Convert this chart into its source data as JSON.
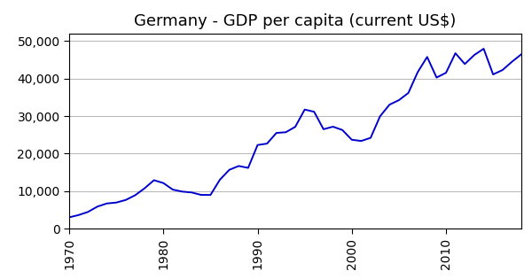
{
  "title": "Germany - GDP per capita (current US$)",
  "years": [
    1970,
    1971,
    1972,
    1973,
    1974,
    1975,
    1976,
    1977,
    1978,
    1979,
    1980,
    1981,
    1982,
    1983,
    1984,
    1985,
    1986,
    1987,
    1988,
    1989,
    1990,
    1991,
    1992,
    1993,
    1994,
    1995,
    1996,
    1997,
    1998,
    1999,
    2000,
    2001,
    2002,
    2003,
    2004,
    2005,
    2006,
    2007,
    2008,
    2009,
    2010,
    2011,
    2012,
    2013,
    2014,
    2015,
    2016,
    2017,
    2018
  ],
  "values": [
    3044,
    3653,
    4490,
    5913,
    6740,
    6982,
    7667,
    8929,
    10764,
    12938,
    12180,
    10428,
    9901,
    9672,
    9027,
    9004,
    13069,
    15699,
    16718,
    16215,
    22302,
    22674,
    25523,
    25712,
    27146,
    31741,
    31161,
    26511,
    27180,
    26299,
    23705,
    23383,
    24217,
    29955,
    33041,
    34248,
    36150,
    41724,
    45748,
    40274,
    41532,
    46745,
    43869,
    46268,
    47938,
    41103,
    42270,
    44470,
    46468
  ],
  "line_color": "#0000cc",
  "bg_color": "#ffffff",
  "grid_color": "#bbbbbb",
  "xlim": [
    1970,
    2018
  ],
  "ylim": [
    0,
    52000
  ],
  "yticks": [
    0,
    10000,
    20000,
    30000,
    40000,
    50000
  ],
  "xticks": [
    1970,
    1980,
    1990,
    2000,
    2010
  ],
  "title_fontsize": 13,
  "tick_fontsize": 10,
  "line_width": 1.4
}
